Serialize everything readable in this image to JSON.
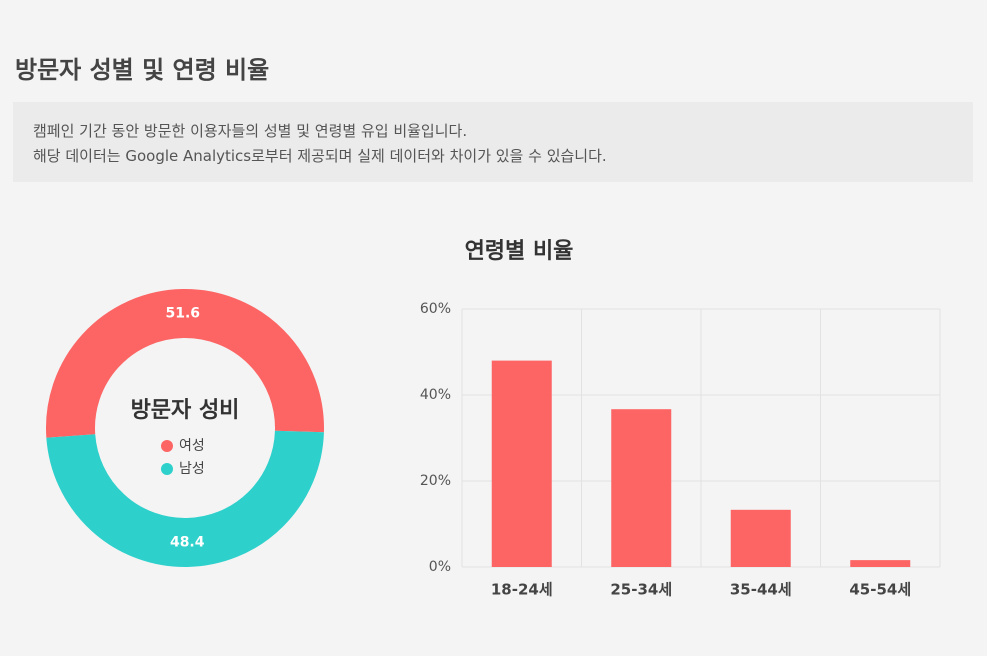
{
  "header": {
    "title": "방문자 성별 및 연령 비율"
  },
  "description": {
    "lines": [
      "캠페인 기간 동안 방문한 이용자들의 성별 및 연령별 유입 비율입니다.",
      "해당 데이터는 Google Analytics로부터 제공되며 실제 데이터와 차이가 있을 수 있습니다."
    ]
  },
  "chart_data": [
    {
      "type": "pie",
      "title": "방문자 성비",
      "categories": [
        "여성",
        "남성"
      ],
      "values": [
        51.6,
        48.4
      ],
      "colors": [
        "#fd6565",
        "#2ed0cb"
      ]
    },
    {
      "type": "bar",
      "title": "연령별 비율",
      "categories": [
        "18-24세",
        "25-34세",
        "35-44세",
        "45-54세"
      ],
      "values": [
        48,
        36.7,
        13.3,
        1.6
      ],
      "color": "#fd6565",
      "ylim": [
        0,
        60
      ],
      "yticks": [
        {
          "value": 0,
          "label": "0%"
        },
        {
          "value": 20,
          "label": "20%"
        },
        {
          "value": 40,
          "label": "40%"
        },
        {
          "value": 60,
          "label": "60%"
        }
      ],
      "grid": true
    }
  ]
}
